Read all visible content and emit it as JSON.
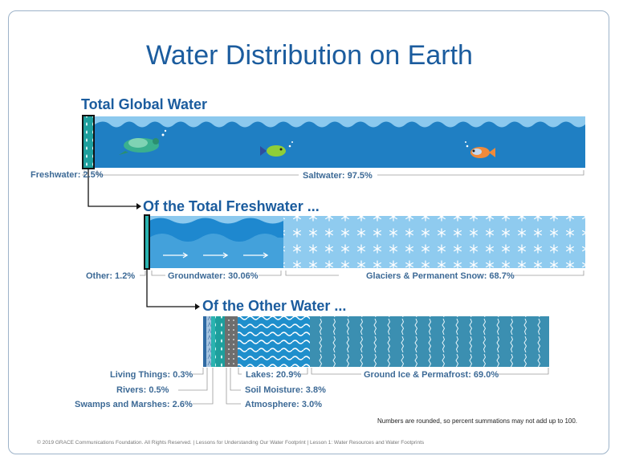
{
  "title": "Water Distribution on Earth",
  "footer": "© 2019  GRACE Communications  Foundation. All Rights Reserved.  |  Lessons for Understanding  Our Water Footprint  |  Lesson  1: Water Resources and Water Footprints",
  "note": "Numbers are rounded, so percent summations may not add up to 100.",
  "colors": {
    "title": "#1b5c9e",
    "saltwater": "#1f7fc3",
    "groundwater": "#1e88cf",
    "glaciers": "#8fcbef",
    "ground_ice": "#3b8fb1",
    "lakes": "#1f8fcc",
    "rivers": "#2ab3b0",
    "soil_moisture": "#6e6e6e",
    "atmosphere": "#9fb3c4",
    "living_things": "#a7c5e0"
  },
  "chart_data": [
    {
      "type": "bar",
      "title": "Total Global Water",
      "categories": [
        "Freshwater",
        "Saltwater"
      ],
      "values": [
        2.5,
        97.5
      ],
      "labels": [
        "Freshwater: 2.5%",
        "Saltwater: 97.5%"
      ],
      "unit": "%"
    },
    {
      "type": "bar",
      "title": "Of the Total Freshwater ...",
      "categories": [
        "Other",
        "Groundwater",
        "Glaciers & Permanent Snow"
      ],
      "values": [
        1.2,
        30.06,
        68.7
      ],
      "labels": [
        "Other: 1.2%",
        "Groundwater: 30.06%",
        "Glaciers & Permanent Snow: 68.7%"
      ],
      "unit": "%"
    },
    {
      "type": "bar",
      "title": "Of the Other Water ...",
      "categories": [
        "Living Things",
        "Rivers",
        "Swamps and Marshes",
        "Soil Moisture",
        "Atmosphere",
        "Lakes",
        "Ground Ice & Permafrost"
      ],
      "values": [
        0.3,
        0.5,
        2.6,
        3.8,
        3.0,
        20.9,
        69.0
      ],
      "labels": [
        "Living Things: 0.3%",
        "Rivers: 0.5%",
        "Swamps and Marshes: 2.6%",
        "Soil Moisture: 3.8%",
        "Atmosphere: 3.0%",
        "Lakes: 20.9%",
        "Ground Ice & Permafrost: 69.0%"
      ],
      "unit": "%"
    }
  ]
}
